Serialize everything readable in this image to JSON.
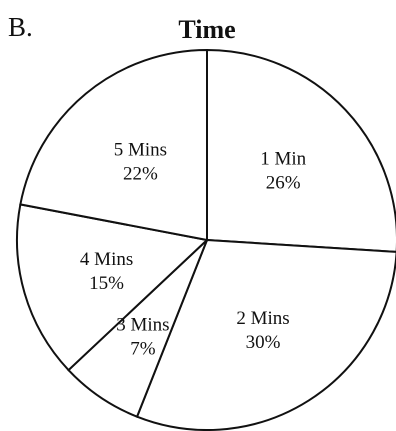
{
  "label": "B.",
  "chart_data": {
    "type": "pie",
    "title": "Time",
    "slices": [
      {
        "name": "1 Min",
        "value": 26,
        "label": "26%"
      },
      {
        "name": "2 Mins",
        "value": 30,
        "label": "30%"
      },
      {
        "name": "3 Mins",
        "value": 7,
        "label": "7%"
      },
      {
        "name": "4 Mins",
        "value": 15,
        "label": "15%"
      },
      {
        "name": "5 Mins",
        "value": 22,
        "label": "22%"
      }
    ],
    "start": "top",
    "direction": "clockwise",
    "fill": "#ffffff",
    "stroke": "#111111"
  }
}
